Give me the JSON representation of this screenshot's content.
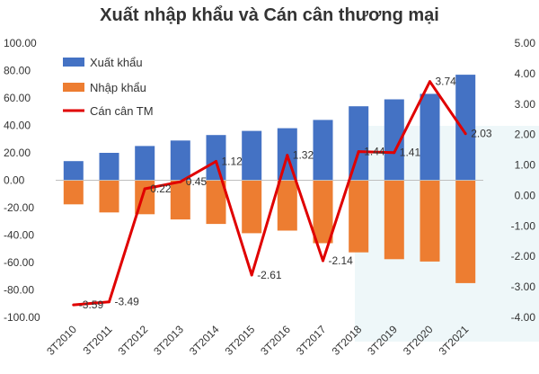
{
  "chart_data": {
    "type": "bar",
    "title": "Xuất nhập khẩu và Cán cân thương mại",
    "categories": [
      "3T2010",
      "3T2011",
      "3T2012",
      "3T2013",
      "3T2014",
      "3T2015",
      "3T2016",
      "3T2017",
      "3T2018",
      "3T2019",
      "3T2020",
      "3T2021"
    ],
    "series": [
      {
        "name": "Xuất khẩu",
        "kind": "bar",
        "axis": "left",
        "color": "#4472C4",
        "values": [
          14,
          20,
          25,
          29,
          33,
          36,
          38,
          44,
          54,
          59,
          63,
          77
        ]
      },
      {
        "name": "Nhập khẩu",
        "kind": "bar",
        "axis": "left",
        "color": "#ED7D31",
        "values": [
          -17.6,
          -23.5,
          -24.8,
          -28.6,
          -31.9,
          -38.6,
          -36.7,
          -45.9,
          -52.6,
          -57.6,
          -59.3,
          -75
        ]
      },
      {
        "name": "Cán cân TM",
        "kind": "line",
        "axis": "right",
        "color": "#E00000",
        "values": [
          -3.59,
          -3.49,
          0.22,
          0.45,
          1.12,
          -2.61,
          1.32,
          -2.14,
          1.44,
          1.41,
          3.74,
          2.03
        ],
        "labels": [
          "-3.59",
          "-3.49",
          "0.22",
          "0.45",
          "1.12",
          "-2.61",
          "1.32",
          "-2.14",
          "1.44",
          "1.41",
          "3.74",
          "2.03"
        ]
      }
    ],
    "y_left": {
      "min": -100,
      "max": 100,
      "step": 20,
      "ticks": [
        "100.00",
        "80.00",
        "60.00",
        "40.00",
        "20.00",
        "0.00",
        "-20.00",
        "-40.00",
        "-60.00",
        "-80.00",
        "-100.00"
      ]
    },
    "y_right": {
      "min": -4,
      "max": 5,
      "step": 1,
      "ticks": [
        "5.00",
        "4.00",
        "3.00",
        "2.00",
        "1.00",
        "0.00",
        "-1.00",
        "-2.00",
        "-3.00",
        "-4.00"
      ]
    },
    "grid": false,
    "legend_position": "top-left"
  }
}
